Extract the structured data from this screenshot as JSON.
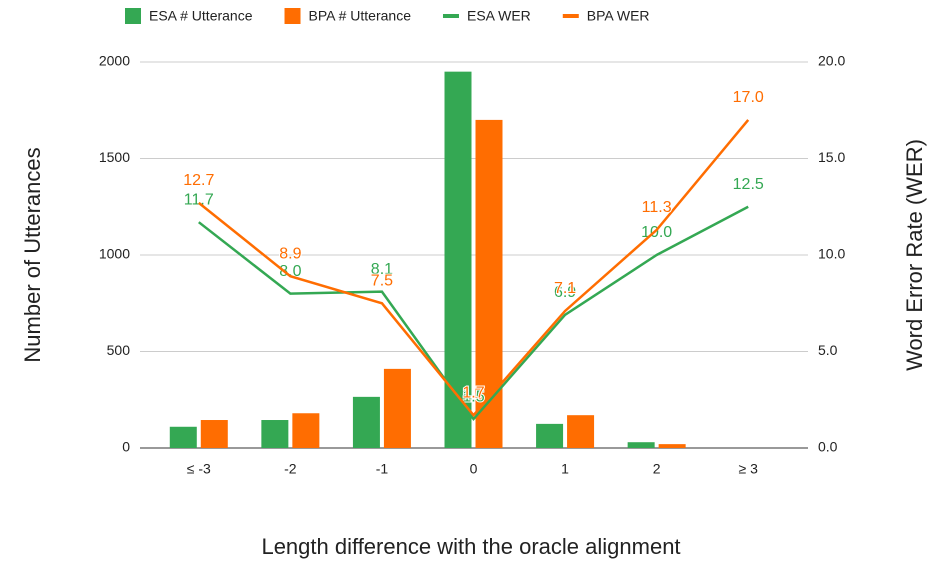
{
  "chart_data": {
    "type": "bar_line",
    "xlabel": "Length difference with the oracle alignment",
    "ylabel": "Number of Utterances",
    "y2label": "Word Error Rate (WER)",
    "categories": [
      "≤ -3",
      "-2",
      "-1",
      "0",
      "1",
      "2",
      "≥ 3"
    ],
    "ylim": [
      0,
      2000
    ],
    "yticks": [
      0,
      500,
      1000,
      1500,
      2000
    ],
    "y2lim": [
      0,
      20
    ],
    "y2ticks": [
      {
        "value": 0,
        "label": "0.0"
      },
      {
        "value": 5,
        "label": "5.0"
      },
      {
        "value": 10,
        "label": "10.0"
      },
      {
        "value": 15,
        "label": "15.0"
      },
      {
        "value": 20,
        "label": "20.0"
      }
    ],
    "grid": true,
    "legend": "top",
    "series": [
      {
        "name": "ESA # Utterance",
        "kind": "bar",
        "color": "#34a853",
        "values": [
          110,
          145,
          265,
          1950,
          125,
          30,
          0
        ]
      },
      {
        "name": "BPA # Utterance",
        "kind": "bar",
        "color": "#ff6d01",
        "values": [
          145,
          180,
          410,
          1700,
          170,
          20,
          0
        ]
      },
      {
        "name": "ESA WER",
        "kind": "line",
        "axis": "y2",
        "color": "#34a853",
        "values": [
          11.7,
          8.0,
          8.1,
          1.5,
          6.9,
          10.0,
          12.5
        ],
        "value_labels": [
          "11.7",
          "8.0",
          "8.1",
          "1.5",
          "6.9",
          "10.0",
          "12.5"
        ]
      },
      {
        "name": "BPA WER",
        "kind": "line",
        "axis": "y2",
        "color": "#ff6d01",
        "values": [
          12.7,
          8.9,
          7.5,
          1.7,
          7.1,
          11.3,
          17.0
        ],
        "value_labels": [
          "12.7",
          "8.9",
          "7.5",
          "1.7",
          "7.1",
          "11.3",
          "17.0"
        ]
      }
    ]
  }
}
